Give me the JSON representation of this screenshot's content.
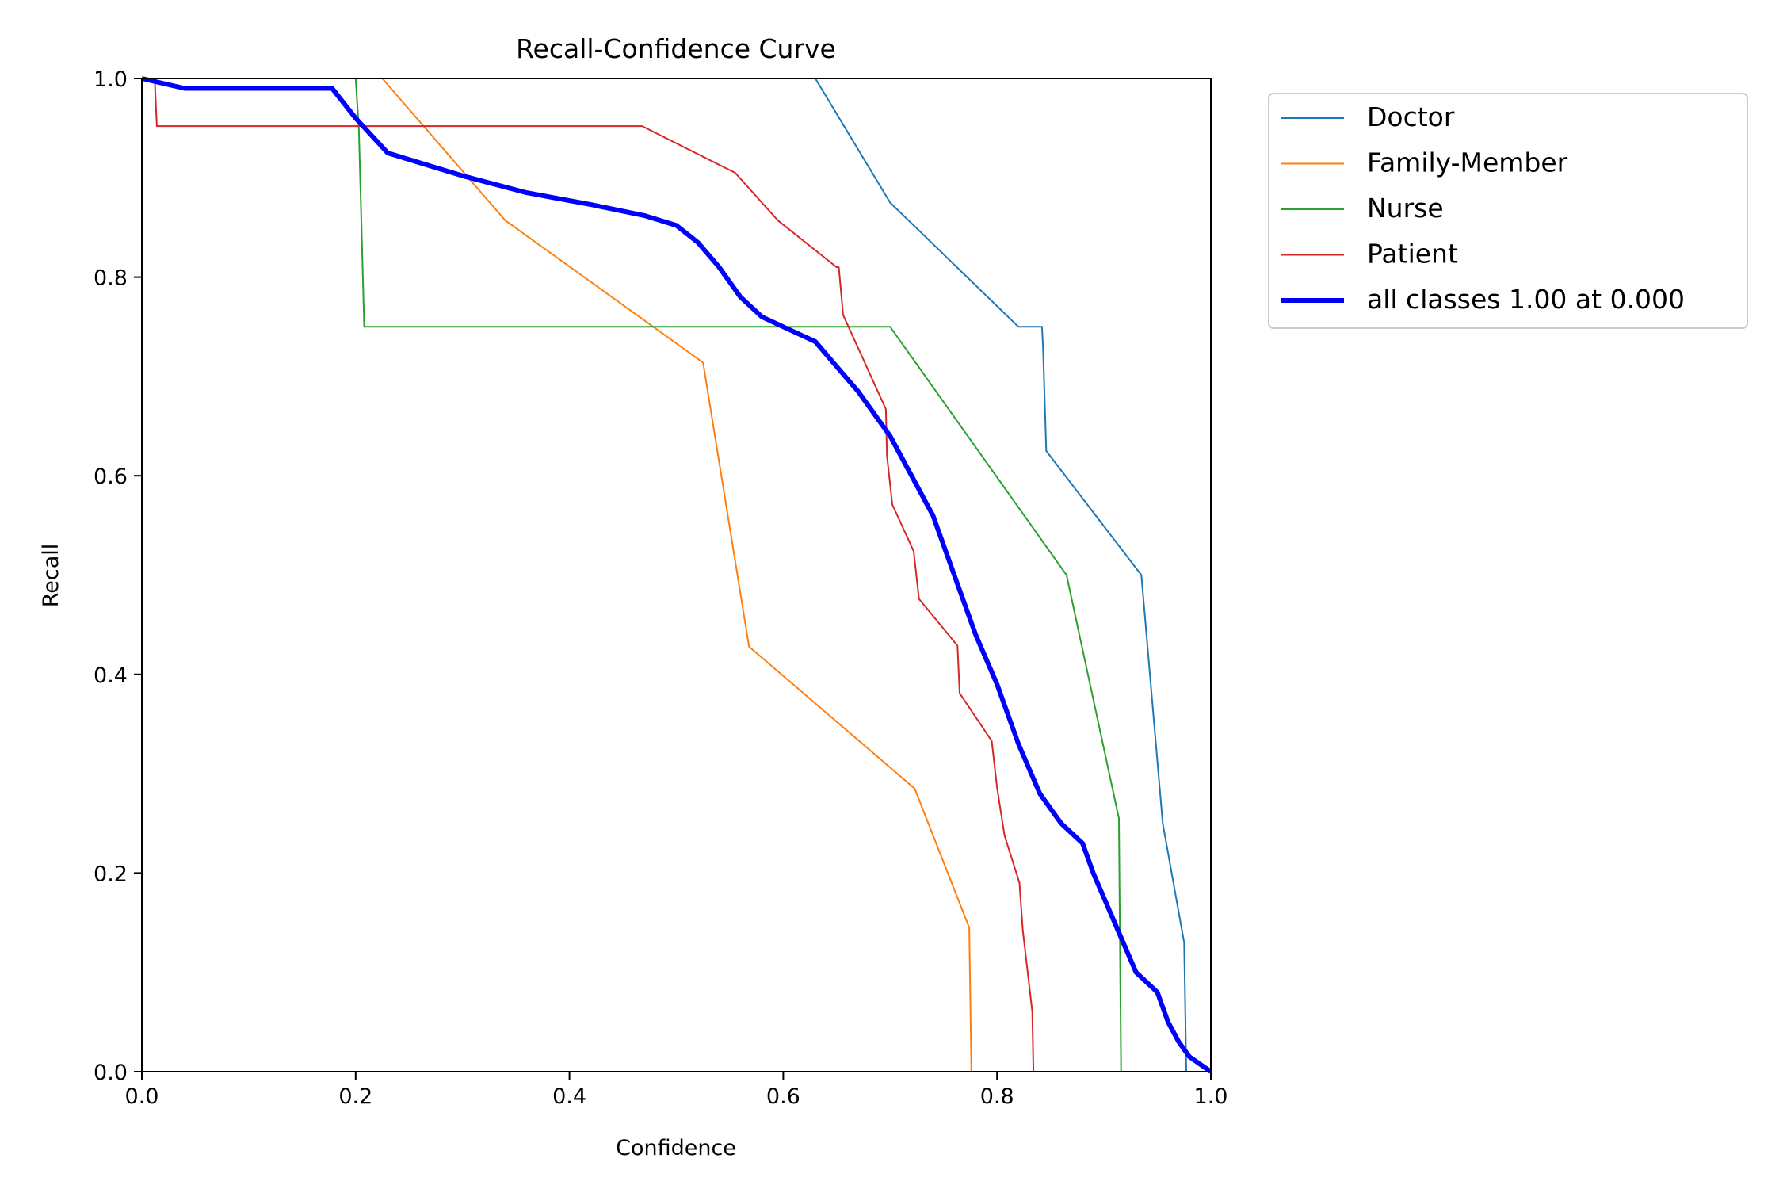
{
  "chart_data": {
    "type": "line",
    "title": "Recall-Confidence Curve",
    "xlabel": "Confidence",
    "ylabel": "Recall",
    "xlim": [
      0.0,
      1.0
    ],
    "ylim": [
      0.0,
      1.0
    ],
    "xticks": [
      "0.0",
      "0.2",
      "0.4",
      "0.6",
      "0.8",
      "1.0"
    ],
    "yticks": [
      "0.0",
      "0.2",
      "0.4",
      "0.6",
      "0.8",
      "1.0"
    ],
    "grid": false,
    "legend_position": "outside upper-right",
    "series": [
      {
        "name": "Doctor",
        "color": "#1f77b4",
        "width": "thin",
        "x": [
          0.63,
          0.7,
          0.82,
          0.842,
          0.843,
          0.846,
          0.935,
          0.945,
          0.955,
          0.975,
          0.977,
          1.0
        ],
        "y": [
          1.0,
          0.875,
          0.75,
          0.75,
          0.73,
          0.625,
          0.5,
          0.375,
          0.25,
          0.13,
          0.0,
          0.0
        ]
      },
      {
        "name": "Family-Member",
        "color": "#ff7f0e",
        "width": "thin",
        "x": [
          0.225,
          0.34,
          0.525,
          0.568,
          0.723,
          0.774,
          0.776,
          1.0
        ],
        "y": [
          1.0,
          0.857,
          0.714,
          0.428,
          0.285,
          0.145,
          0.0,
          0.0
        ]
      },
      {
        "name": "Nurse",
        "color": "#2ca02c",
        "width": "thin",
        "x": [
          0.2,
          0.203,
          0.208,
          0.7,
          0.865,
          0.914,
          0.916,
          1.0
        ],
        "y": [
          1.0,
          0.95,
          0.75,
          0.75,
          0.5,
          0.255,
          0.0,
          0.0
        ]
      },
      {
        "name": "Patient",
        "color": "#d62728",
        "width": "thin",
        "x": [
          0.0,
          0.012,
          0.014,
          0.468,
          0.555,
          0.595,
          0.65,
          0.652,
          0.656,
          0.696,
          0.697,
          0.702,
          0.722,
          0.727,
          0.763,
          0.765,
          0.795,
          0.8,
          0.807,
          0.821,
          0.824,
          0.833,
          0.834,
          1.0
        ],
        "y": [
          1.0,
          1.0,
          0.952,
          0.952,
          0.905,
          0.857,
          0.81,
          0.81,
          0.762,
          0.667,
          0.62,
          0.571,
          0.524,
          0.476,
          0.429,
          0.381,
          0.333,
          0.286,
          0.238,
          0.19,
          0.143,
          0.06,
          0.0,
          0.0
        ]
      },
      {
        "name": "all classes 1.00 at 0.000",
        "color": "#0000ff",
        "width": "thick",
        "x": [
          0.0,
          0.04,
          0.1,
          0.178,
          0.2,
          0.23,
          0.3,
          0.36,
          0.42,
          0.47,
          0.5,
          0.52,
          0.54,
          0.56,
          0.58,
          0.6,
          0.63,
          0.65,
          0.67,
          0.7,
          0.72,
          0.74,
          0.76,
          0.78,
          0.8,
          0.82,
          0.84,
          0.86,
          0.88,
          0.89,
          0.91,
          0.93,
          0.95,
          0.96,
          0.97,
          0.98,
          1.0
        ],
        "y": [
          1.0,
          0.99,
          0.99,
          0.99,
          0.96,
          0.925,
          0.902,
          0.885,
          0.873,
          0.862,
          0.852,
          0.835,
          0.81,
          0.78,
          0.76,
          0.75,
          0.735,
          0.71,
          0.685,
          0.64,
          0.6,
          0.56,
          0.5,
          0.44,
          0.39,
          0.33,
          0.28,
          0.25,
          0.23,
          0.2,
          0.15,
          0.1,
          0.08,
          0.05,
          0.03,
          0.015,
          0.0
        ]
      }
    ]
  }
}
